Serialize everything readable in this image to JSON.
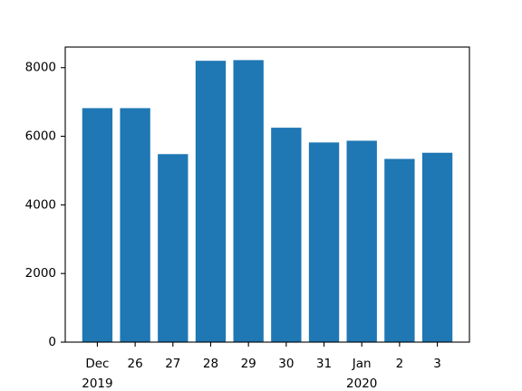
{
  "chart_data": {
    "type": "bar",
    "categories": [
      "Dec 25 2019",
      "Dec 26",
      "Dec 27",
      "Dec 28",
      "Dec 29",
      "Dec 30",
      "Dec 31",
      "Jan 1 2020",
      "Jan 2",
      "Jan 3"
    ],
    "values": [
      6820,
      6820,
      5480,
      8200,
      8220,
      6250,
      5820,
      5870,
      5340,
      5520
    ],
    "x_tick_labels": [
      {
        "major": "Dec",
        "minor": "2019"
      },
      {
        "major": "26",
        "minor": ""
      },
      {
        "major": "27",
        "minor": ""
      },
      {
        "major": "28",
        "minor": ""
      },
      {
        "major": "29",
        "minor": ""
      },
      {
        "major": "30",
        "minor": ""
      },
      {
        "major": "31",
        "minor": ""
      },
      {
        "major": "Jan",
        "minor": "2020"
      },
      {
        "major": "2",
        "minor": ""
      },
      {
        "major": "3",
        "minor": ""
      }
    ],
    "y_ticks": [
      0,
      2000,
      4000,
      6000,
      8000
    ],
    "ylim": [
      0,
      8600
    ],
    "title": "",
    "xlabel": "",
    "ylabel": "",
    "grid": false,
    "bar_color": "#1f77b4"
  }
}
